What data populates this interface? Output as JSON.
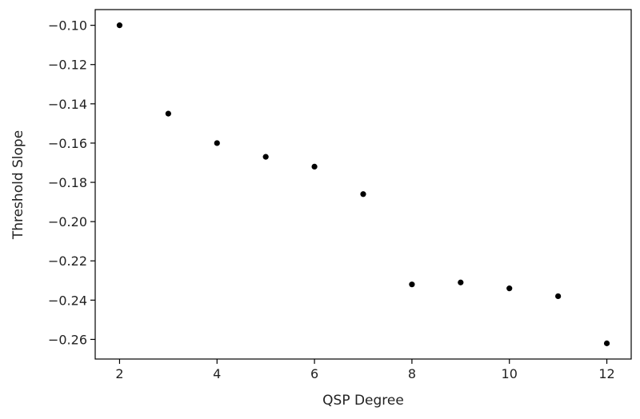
{
  "chart_data": {
    "type": "scatter",
    "title": "",
    "xlabel": "QSP Degree",
    "ylabel": "Threshold Slope",
    "xlim": [
      1.5,
      12.5
    ],
    "ylim": [
      -0.27,
      -0.092
    ],
    "xticks": [
      2,
      4,
      6,
      8,
      10,
      12
    ],
    "xtick_labels": [
      "2",
      "4",
      "6",
      "8",
      "10",
      "12"
    ],
    "yticks": [
      -0.1,
      -0.12,
      -0.14,
      -0.16,
      -0.18,
      -0.2,
      -0.22,
      -0.24,
      -0.26
    ],
    "ytick_labels": [
      "−0.10",
      "−0.12",
      "−0.14",
      "−0.16",
      "−0.18",
      "−0.20",
      "−0.22",
      "−0.24",
      "−0.26"
    ],
    "grid": false,
    "marker_color": "#000000",
    "series": [
      {
        "x": [
          2,
          3,
          4,
          5,
          6,
          7,
          8,
          9,
          10,
          11,
          12
        ],
        "y": [
          -0.1,
          -0.145,
          -0.16,
          -0.167,
          -0.172,
          -0.186,
          -0.232,
          -0.231,
          -0.234,
          -0.238,
          -0.262
        ]
      }
    ]
  }
}
